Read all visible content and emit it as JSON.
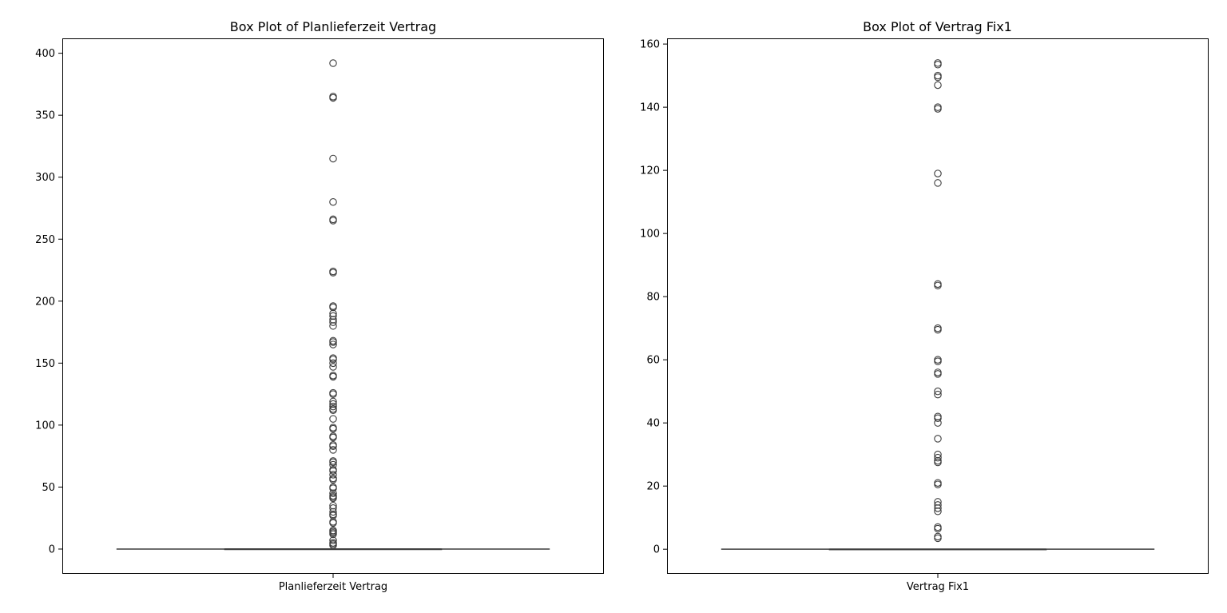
{
  "chart_data": [
    {
      "type": "box",
      "title": "Box Plot of Planlieferzeit Vertrag",
      "category": "Planlieferzeit Vertrag",
      "ylim": [
        -20,
        412
      ],
      "yticks": [
        0,
        50,
        100,
        150,
        200,
        250,
        300,
        350,
        400
      ],
      "box": {
        "q1": 0,
        "median": 0,
        "q3": 0,
        "whisker_low": 0,
        "whisker_high": 0
      },
      "outliers": [
        392,
        365,
        364,
        315,
        280,
        266,
        265,
        224,
        223,
        196,
        195,
        190,
        188,
        185,
        183,
        180,
        168,
        167,
        165,
        154,
        153,
        150,
        147,
        140,
        139,
        126,
        125,
        119,
        117,
        115,
        113,
        112,
        105,
        98,
        97,
        91,
        90,
        84,
        83,
        80,
        71,
        70,
        68,
        64,
        63,
        60,
        57,
        56,
        50,
        49,
        45,
        43,
        42,
        41,
        35,
        33,
        30,
        28,
        27,
        22,
        21,
        15,
        14,
        13,
        12,
        7,
        5,
        4,
        3
      ]
    },
    {
      "type": "box",
      "title": "Box Plot of Vertrag Fix1",
      "category": "Vertrag Fix1",
      "ylim": [
        -7.8,
        161.8
      ],
      "yticks": [
        0,
        20,
        40,
        60,
        80,
        100,
        120,
        140,
        160
      ],
      "box": {
        "q1": 0,
        "median": 0,
        "q3": 0,
        "whisker_low": 0,
        "whisker_high": 0
      },
      "outliers": [
        154,
        153.5,
        150,
        149.5,
        147,
        140,
        139.5,
        119,
        116,
        84,
        83.5,
        70,
        69.5,
        60,
        59.5,
        56,
        55.5,
        50,
        49,
        42,
        41.5,
        40,
        35,
        30,
        29,
        28,
        27.5,
        21,
        20.5,
        15,
        14,
        13,
        12,
        7,
        6.5,
        4,
        3.5
      ]
    }
  ]
}
